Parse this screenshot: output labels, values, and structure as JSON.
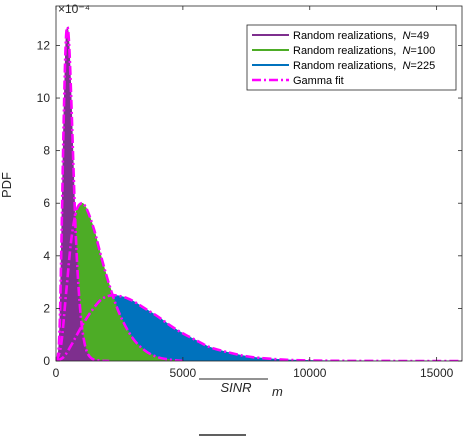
{
  "chart_data": {
    "type": "area",
    "exponent_label": "×10⁻⁴",
    "xlabel": "SINR",
    "xlabel_sub": "m",
    "ylabel": "PDF",
    "xlim": [
      0,
      16000
    ],
    "ylim": [
      0,
      13.5
    ],
    "y_unit_scale": "1e-4",
    "x_ticks": [
      0,
      5000,
      10000,
      15000
    ],
    "y_ticks": [
      0,
      2,
      4,
      6,
      8,
      10,
      12
    ],
    "grid": false,
    "legend_position": "top-right",
    "series": [
      {
        "name": "Random realizations,  N=49",
        "name_prefix": "Random realizations,",
        "name_var": "N",
        "name_value": "=49",
        "color": "#7e2f8e",
        "style": "filled-area",
        "x": [
          0,
          80,
          150,
          220,
          300,
          380,
          450,
          520,
          600,
          680,
          760,
          850,
          950,
          1050,
          1200,
          1400,
          1700,
          2100
        ],
        "y": [
          0,
          0.2,
          1.5,
          4.8,
          9.0,
          12.0,
          12.7,
          12.0,
          10.0,
          7.6,
          5.3,
          3.4,
          2.0,
          1.1,
          0.4,
          0.1,
          0.02,
          0
        ]
      },
      {
        "name": "Random realizations,  N=100",
        "name_prefix": "Random realizations,",
        "name_var": "N",
        "name_value": "=100",
        "color": "#4dac26",
        "style": "filled-area",
        "x": [
          0,
          200,
          400,
          600,
          800,
          1000,
          1200,
          1500,
          1800,
          2100,
          2500,
          3000,
          3500,
          4000,
          4500,
          5000
        ],
        "y": [
          0,
          0.6,
          2.6,
          4.6,
          5.7,
          6.0,
          5.8,
          5.0,
          3.9,
          2.9,
          1.8,
          0.9,
          0.4,
          0.15,
          0.05,
          0
        ]
      },
      {
        "name": "Random realizations,  N=225",
        "name_prefix": "Random realizations,",
        "name_var": "N",
        "name_value": "=225",
        "color": "#0072bd",
        "style": "filled-area",
        "x": [
          0,
          300,
          600,
          1000,
          1400,
          1800,
          2200,
          2600,
          3000,
          3500,
          4000,
          4500,
          5000,
          5500,
          6000,
          6500,
          7000,
          7500,
          8000,
          9000,
          10000,
          11000,
          12000,
          13000,
          14000,
          15000,
          16000
        ],
        "y": [
          0,
          0.15,
          0.6,
          1.3,
          1.9,
          2.35,
          2.5,
          2.45,
          2.3,
          2.0,
          1.7,
          1.35,
          1.05,
          0.8,
          0.55,
          0.4,
          0.28,
          0.18,
          0.12,
          0.05,
          0.02,
          0.008,
          0.003,
          0.001,
          0,
          0,
          0
        ]
      },
      {
        "name": "Gamma fit",
        "color": "#ff00ff",
        "style": "dash-dot",
        "fits": [
          {
            "x": [
              0,
              80,
              150,
              220,
              300,
              380,
              450,
              520,
              600,
              680,
              760,
              850,
              950,
              1050,
              1200,
              1400,
              1700,
              2100
            ],
            "y": [
              0,
              0.2,
              1.5,
              4.8,
              9.0,
              12.0,
              12.7,
              12.0,
              10.0,
              7.6,
              5.3,
              3.4,
              2.0,
              1.1,
              0.4,
              0.1,
              0.02,
              0
            ]
          },
          {
            "x": [
              0,
              200,
              400,
              600,
              800,
              1000,
              1200,
              1500,
              1800,
              2100,
              2500,
              3000,
              3500,
              4000,
              4500,
              5000
            ],
            "y": [
              0,
              0.6,
              2.6,
              4.6,
              5.7,
              6.0,
              5.8,
              5.0,
              3.9,
              2.9,
              1.8,
              0.9,
              0.4,
              0.15,
              0.05,
              0
            ]
          },
          {
            "x": [
              0,
              300,
              600,
              1000,
              1400,
              1800,
              2200,
              2600,
              3000,
              3500,
              4000,
              4500,
              5000,
              5500,
              6000,
              6500,
              7000,
              7500,
              8000,
              9000,
              10000,
              11000,
              12000,
              13000,
              14000,
              15000,
              16000
            ],
            "y": [
              0,
              0.15,
              0.6,
              1.3,
              1.9,
              2.35,
              2.5,
              2.45,
              2.3,
              2.0,
              1.7,
              1.35,
              1.05,
              0.8,
              0.55,
              0.4,
              0.28,
              0.18,
              0.12,
              0.05,
              0.02,
              0.008,
              0.003,
              0.001,
              0,
              0,
              0
            ]
          }
        ]
      }
    ]
  }
}
